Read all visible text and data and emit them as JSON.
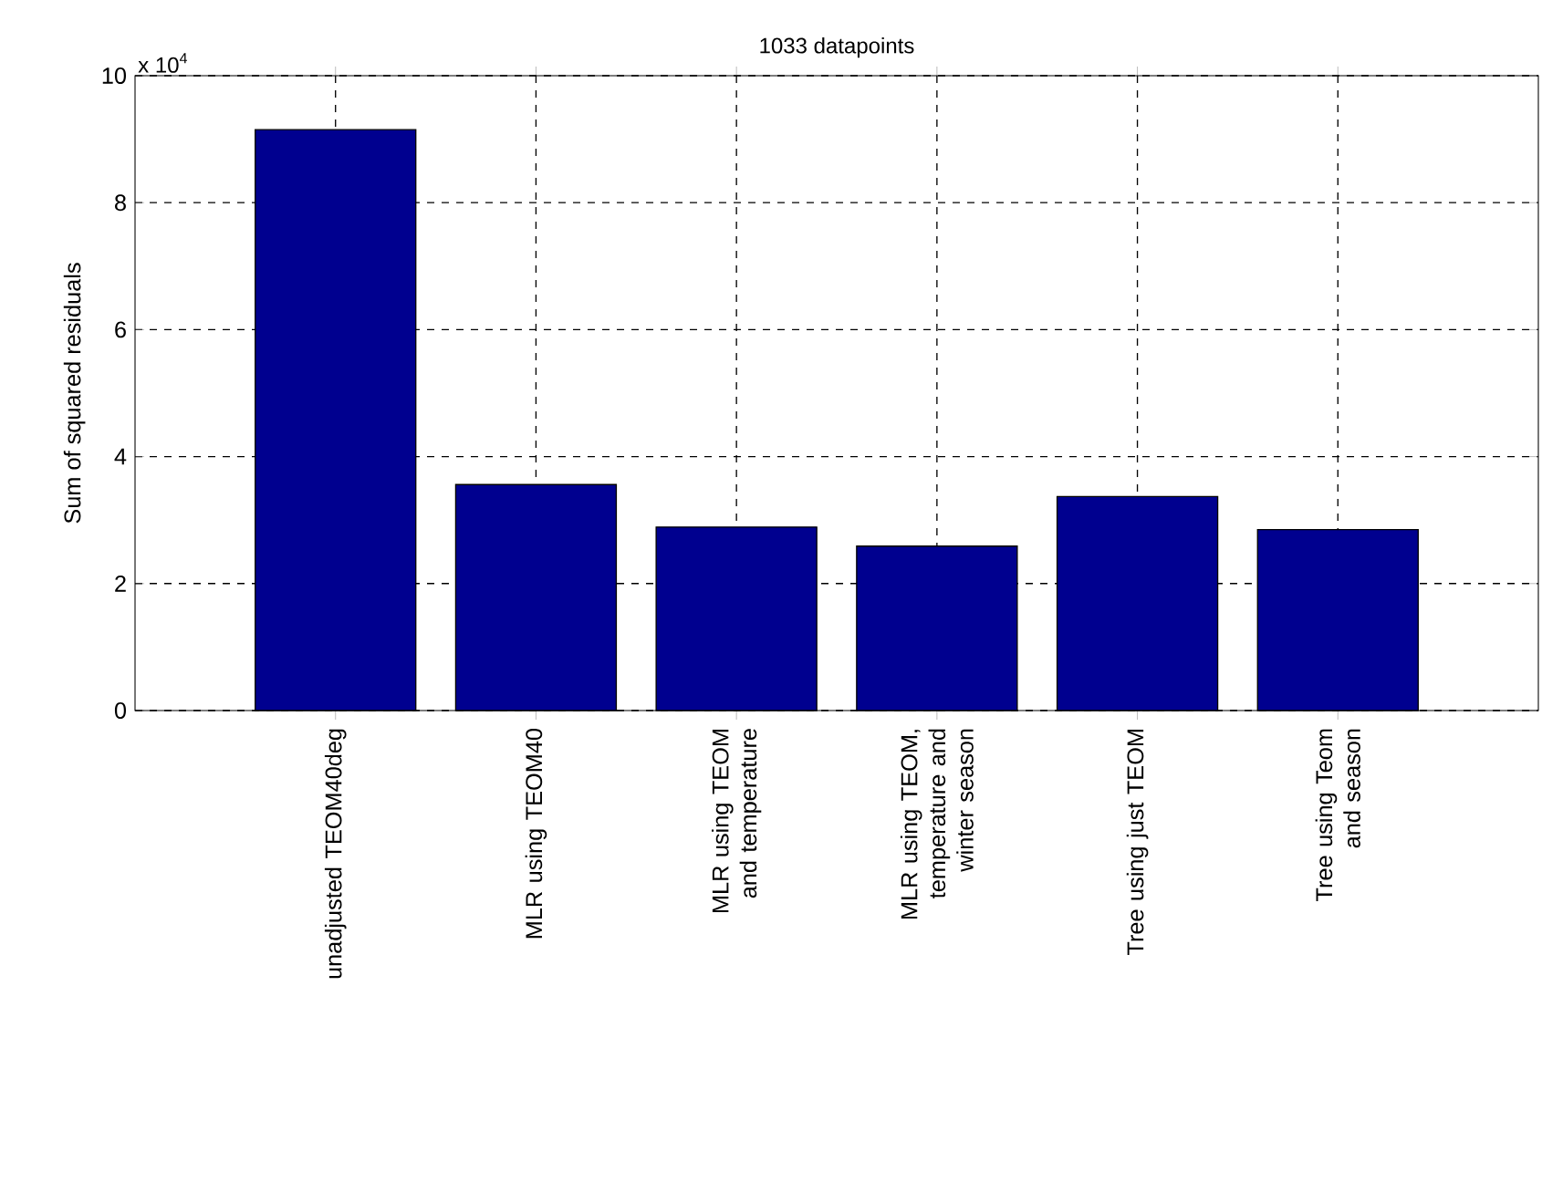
{
  "chart_data": {
    "type": "bar",
    "title": "1033 datapoints",
    "ylabel": "Sum of squared residuals",
    "categories": [
      "unadjusted TEOM40deg",
      "MLR using TEOM40",
      "MLR using TEOM and temperature",
      "MLR using TEOM, temperature and winter season",
      "Tree using just TEOM",
      "Tree using Teom and season"
    ],
    "values": [
      9.15,
      3.56,
      2.89,
      2.59,
      3.37,
      2.85
    ],
    "color": "#00008f",
    "ylim": [
      0,
      10
    ],
    "yticks": [
      0,
      2,
      4,
      6,
      8,
      10
    ],
    "grid": true,
    "annotations": [
      "x 10$^{4}$"
    ]
  }
}
